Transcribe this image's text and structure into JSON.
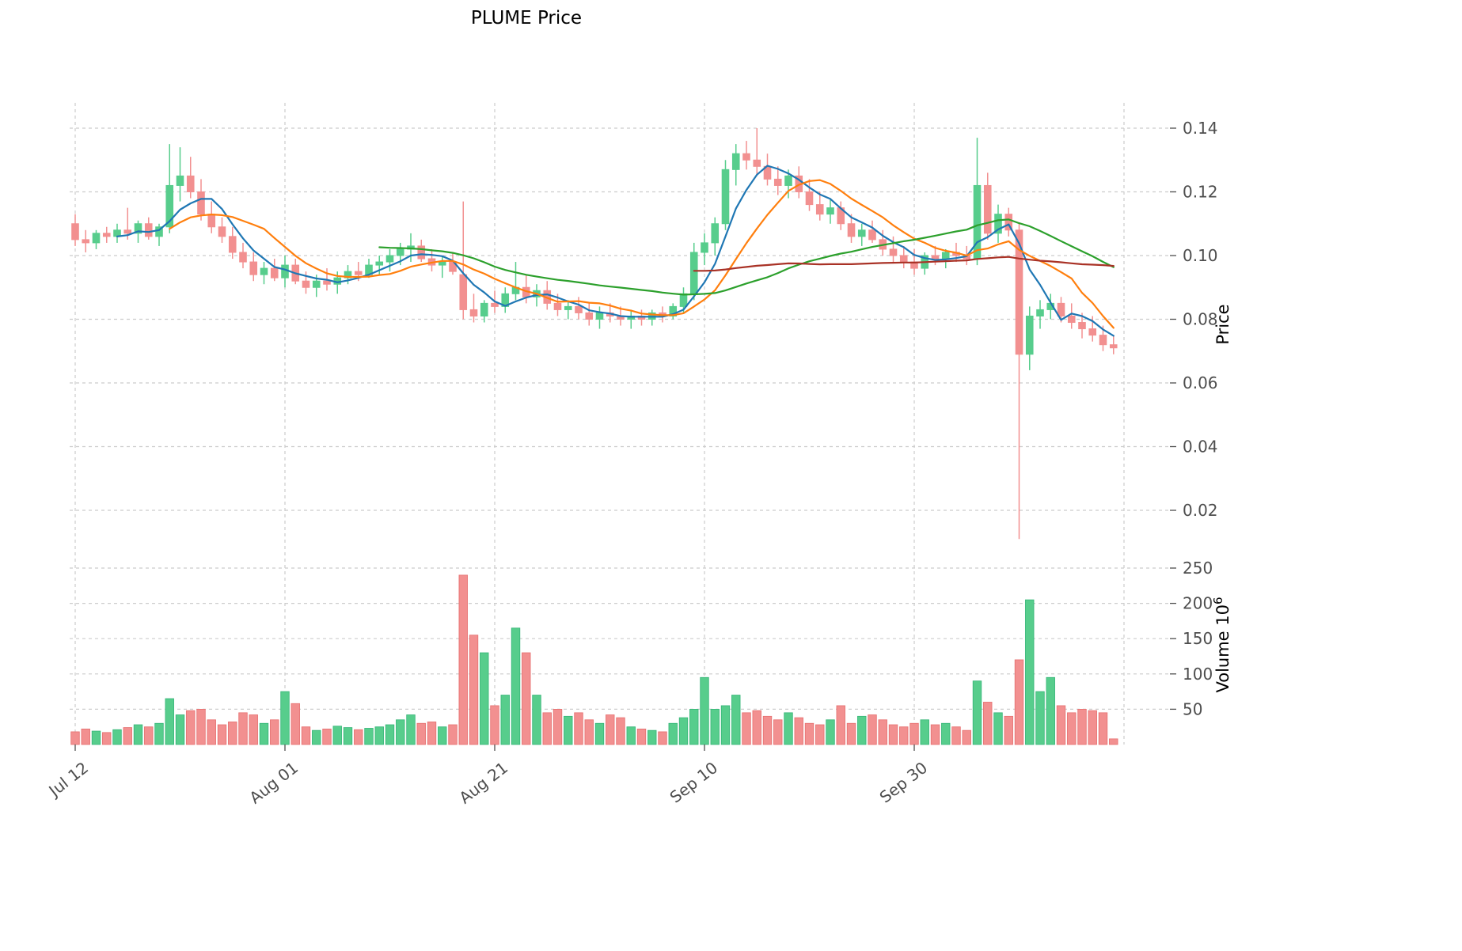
{
  "title": "PLUME Price",
  "axes": {
    "price_axis_label": "Price",
    "volume_axis_label": "Volume",
    "volume_scale_base": "10",
    "volume_scale_exponent": "6",
    "price_ticks": [
      "0.14",
      "0.12",
      "0.10",
      "0.08",
      "0.06",
      "0.04",
      "0.02"
    ],
    "volume_ticks": [
      "250",
      "200",
      "150",
      "100",
      "50"
    ]
  },
  "chart_data": {
    "type": "candlestick+volume",
    "title": "PLUME Price",
    "price_axis_label": "Price",
    "volume_axis_label": "Volume",
    "volume_units": "10^6",
    "grid": true,
    "legend_position": "none",
    "price_ticks": [
      0.14,
      0.12,
      0.1,
      0.08,
      0.06,
      0.04,
      0.02
    ],
    "volume_ticks": [
      250,
      200,
      150,
      100,
      50
    ],
    "price_range": [
      0.009,
      0.148
    ],
    "volume_range": [
      0,
      270
    ],
    "x_ticks": [
      {
        "index": 0,
        "label": "Jul 12"
      },
      {
        "index": 20,
        "label": "Aug 01"
      },
      {
        "index": 40,
        "label": "Aug 21"
      },
      {
        "index": 60,
        "label": "Sep 10"
      },
      {
        "index": 80,
        "label": "Sep 30"
      },
      {
        "index": 100,
        "label": ""
      }
    ],
    "up_color": "#57cd8c",
    "down_color": "#f29090",
    "up_edge_color": "#35b577",
    "down_edge_color": "#e66f6f",
    "moving_averages": [
      {
        "name": "MA5",
        "window": 5,
        "color": "#1f77b4"
      },
      {
        "name": "MA10",
        "window": 10,
        "color": "#ff7f0e"
      },
      {
        "name": "MA30",
        "window": 30,
        "color": "#2ca02c"
      },
      {
        "name": "MA60",
        "window": 60,
        "color": "#a93226"
      }
    ],
    "ohlc": [
      [
        0.11,
        0.113,
        0.103,
        0.105
      ],
      [
        0.105,
        0.108,
        0.101,
        0.104
      ],
      [
        0.104,
        0.108,
        0.102,
        0.107
      ],
      [
        0.107,
        0.109,
        0.104,
        0.106
      ],
      [
        0.106,
        0.11,
        0.104,
        0.108
      ],
      [
        0.108,
        0.115,
        0.105,
        0.107
      ],
      [
        0.107,
        0.111,
        0.104,
        0.11
      ],
      [
        0.11,
        0.112,
        0.105,
        0.106
      ],
      [
        0.106,
        0.11,
        0.103,
        0.109
      ],
      [
        0.109,
        0.135,
        0.107,
        0.122
      ],
      [
        0.122,
        0.134,
        0.117,
        0.125
      ],
      [
        0.125,
        0.131,
        0.118,
        0.12
      ],
      [
        0.12,
        0.124,
        0.111,
        0.113
      ],
      [
        0.113,
        0.117,
        0.107,
        0.109
      ],
      [
        0.109,
        0.112,
        0.104,
        0.106
      ],
      [
        0.106,
        0.109,
        0.099,
        0.101
      ],
      [
        0.101,
        0.104,
        0.096,
        0.098
      ],
      [
        0.098,
        0.101,
        0.092,
        0.094
      ],
      [
        0.094,
        0.098,
        0.091,
        0.096
      ],
      [
        0.096,
        0.099,
        0.092,
        0.093
      ],
      [
        0.093,
        0.1,
        0.09,
        0.097
      ],
      [
        0.097,
        0.099,
        0.091,
        0.092
      ],
      [
        0.092,
        0.095,
        0.088,
        0.09
      ],
      [
        0.09,
        0.094,
        0.087,
        0.092
      ],
      [
        0.092,
        0.096,
        0.089,
        0.091
      ],
      [
        0.091,
        0.095,
        0.088,
        0.093
      ],
      [
        0.093,
        0.097,
        0.091,
        0.095
      ],
      [
        0.095,
        0.098,
        0.092,
        0.094
      ],
      [
        0.094,
        0.099,
        0.093,
        0.097
      ],
      [
        0.097,
        0.1,
        0.094,
        0.098
      ],
      [
        0.098,
        0.102,
        0.095,
        0.1
      ],
      [
        0.1,
        0.104,
        0.097,
        0.102
      ],
      [
        0.102,
        0.107,
        0.098,
        0.103
      ],
      [
        0.103,
        0.105,
        0.098,
        0.099
      ],
      [
        0.099,
        0.102,
        0.095,
        0.097
      ],
      [
        0.097,
        0.1,
        0.093,
        0.098
      ],
      [
        0.098,
        0.101,
        0.094,
        0.095
      ],
      [
        0.094,
        0.117,
        0.08,
        0.083
      ],
      [
        0.083,
        0.088,
        0.079,
        0.081
      ],
      [
        0.081,
        0.086,
        0.079,
        0.085
      ],
      [
        0.085,
        0.089,
        0.082,
        0.084
      ],
      [
        0.084,
        0.09,
        0.082,
        0.088
      ],
      [
        0.088,
        0.098,
        0.086,
        0.09
      ],
      [
        0.09,
        0.094,
        0.085,
        0.087
      ],
      [
        0.087,
        0.091,
        0.084,
        0.089
      ],
      [
        0.089,
        0.092,
        0.083,
        0.085
      ],
      [
        0.085,
        0.088,
        0.081,
        0.083
      ],
      [
        0.083,
        0.086,
        0.08,
        0.084
      ],
      [
        0.084,
        0.087,
        0.08,
        0.082
      ],
      [
        0.082,
        0.085,
        0.078,
        0.08
      ],
      [
        0.08,
        0.084,
        0.077,
        0.082
      ],
      [
        0.082,
        0.085,
        0.079,
        0.081
      ],
      [
        0.081,
        0.084,
        0.078,
        0.08
      ],
      [
        0.08,
        0.083,
        0.077,
        0.081
      ],
      [
        0.081,
        0.083,
        0.078,
        0.08
      ],
      [
        0.08,
        0.083,
        0.078,
        0.082
      ],
      [
        0.082,
        0.084,
        0.079,
        0.081
      ],
      [
        0.081,
        0.085,
        0.08,
        0.084
      ],
      [
        0.084,
        0.09,
        0.082,
        0.088
      ],
      [
        0.088,
        0.104,
        0.086,
        0.101
      ],
      [
        0.101,
        0.107,
        0.097,
        0.104
      ],
      [
        0.104,
        0.112,
        0.1,
        0.11
      ],
      [
        0.11,
        0.13,
        0.108,
        0.127
      ],
      [
        0.127,
        0.135,
        0.122,
        0.132
      ],
      [
        0.132,
        0.136,
        0.127,
        0.13
      ],
      [
        0.13,
        0.14,
        0.125,
        0.128
      ],
      [
        0.128,
        0.132,
        0.122,
        0.124
      ],
      [
        0.124,
        0.128,
        0.119,
        0.122
      ],
      [
        0.122,
        0.127,
        0.118,
        0.125
      ],
      [
        0.125,
        0.128,
        0.118,
        0.12
      ],
      [
        0.12,
        0.124,
        0.114,
        0.116
      ],
      [
        0.116,
        0.12,
        0.111,
        0.113
      ],
      [
        0.113,
        0.118,
        0.11,
        0.115
      ],
      [
        0.115,
        0.117,
        0.108,
        0.11
      ],
      [
        0.11,
        0.113,
        0.104,
        0.106
      ],
      [
        0.106,
        0.11,
        0.103,
        0.108
      ],
      [
        0.108,
        0.111,
        0.104,
        0.105
      ],
      [
        0.105,
        0.108,
        0.1,
        0.102
      ],
      [
        0.102,
        0.106,
        0.098,
        0.1
      ],
      [
        0.1,
        0.103,
        0.096,
        0.098
      ],
      [
        0.098,
        0.102,
        0.094,
        0.096
      ],
      [
        0.096,
        0.101,
        0.094,
        0.1
      ],
      [
        0.1,
        0.103,
        0.097,
        0.099
      ],
      [
        0.099,
        0.102,
        0.096,
        0.101
      ],
      [
        0.101,
        0.104,
        0.098,
        0.1
      ],
      [
        0.1,
        0.103,
        0.097,
        0.099
      ],
      [
        0.099,
        0.137,
        0.097,
        0.122
      ],
      [
        0.122,
        0.126,
        0.105,
        0.107
      ],
      [
        0.107,
        0.116,
        0.104,
        0.113
      ],
      [
        0.113,
        0.115,
        0.106,
        0.108
      ],
      [
        0.108,
        0.11,
        0.011,
        0.069
      ],
      [
        0.069,
        0.084,
        0.064,
        0.081
      ],
      [
        0.081,
        0.086,
        0.077,
        0.083
      ],
      [
        0.083,
        0.088,
        0.08,
        0.085
      ],
      [
        0.085,
        0.087,
        0.079,
        0.081
      ],
      [
        0.081,
        0.085,
        0.077,
        0.079
      ],
      [
        0.079,
        0.082,
        0.074,
        0.077
      ],
      [
        0.077,
        0.081,
        0.073,
        0.075
      ],
      [
        0.075,
        0.078,
        0.07,
        0.072
      ],
      [
        0.072,
        0.075,
        0.069,
        0.071
      ]
    ],
    "volume": [
      18,
      22,
      19,
      17,
      21,
      24,
      28,
      25,
      30,
      65,
      42,
      48,
      50,
      35,
      28,
      32,
      45,
      42,
      30,
      35,
      75,
      58,
      25,
      20,
      22,
      26,
      24,
      21,
      23,
      25,
      28,
      35,
      42,
      30,
      32,
      25,
      28,
      240,
      155,
      130,
      55,
      70,
      165,
      130,
      70,
      45,
      50,
      40,
      45,
      35,
      30,
      42,
      38,
      25,
      22,
      20,
      18,
      30,
      38,
      50,
      95,
      50,
      55,
      70,
      45,
      48,
      40,
      35,
      45,
      38,
      30,
      28,
      35,
      55,
      30,
      40,
      42,
      35,
      28,
      25,
      30,
      35,
      28,
      30,
      25,
      20,
      90,
      60,
      45,
      40,
      120,
      205,
      75,
      95,
      55,
      45,
      50,
      48,
      45,
      8
    ]
  }
}
